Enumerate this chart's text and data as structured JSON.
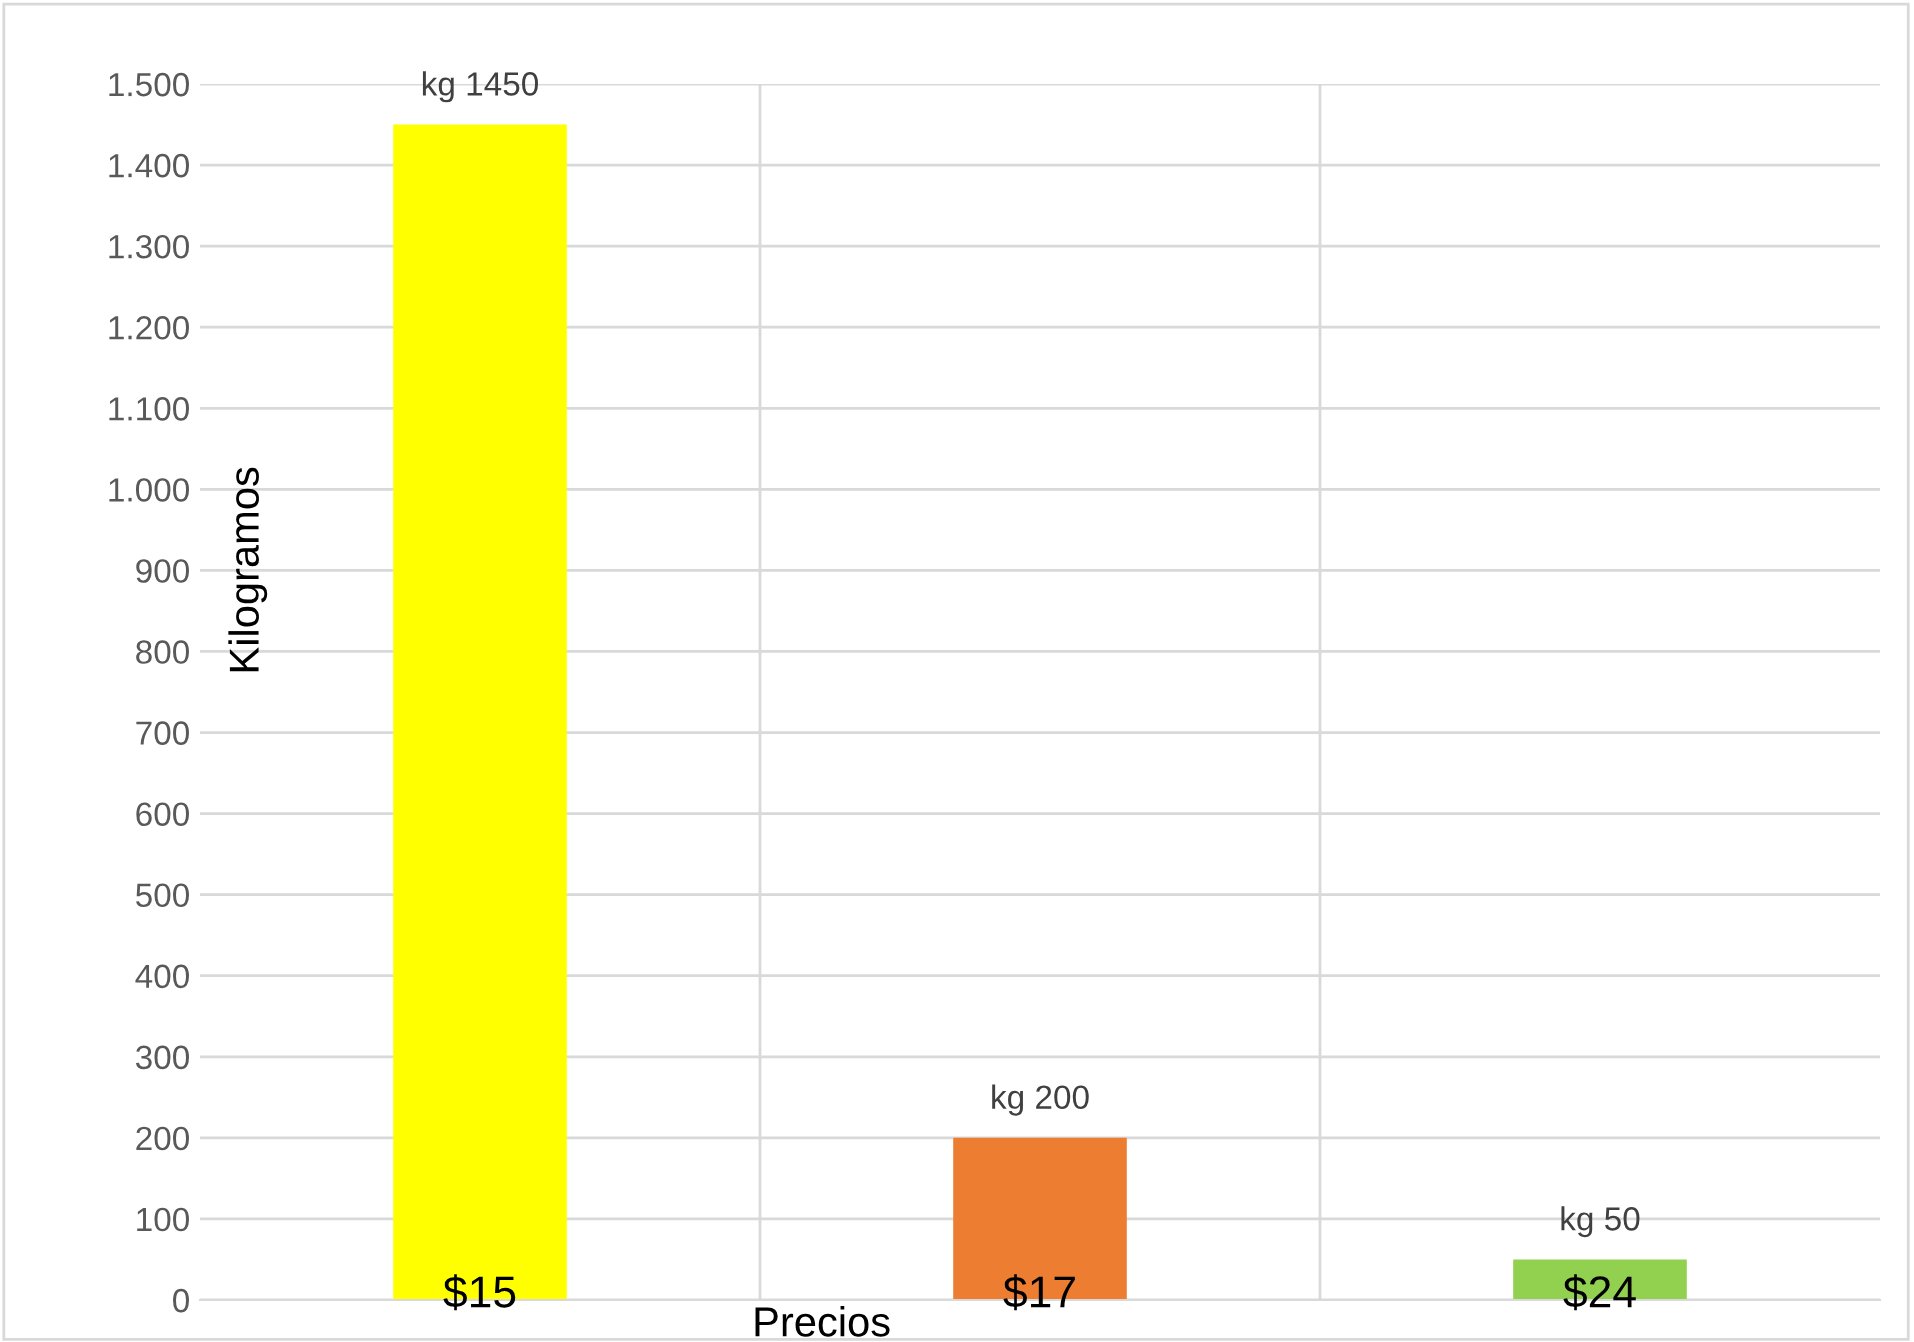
{
  "chart_data": {
    "type": "bar",
    "xlabel": "Precios",
    "ylabel": "Kilogramos",
    "categories": [
      "$15",
      "$17",
      "$24"
    ],
    "values": [
      1450,
      200,
      50
    ],
    "colors": [
      "#ffff00",
      "#ed7d31",
      "#92d050"
    ],
    "value_labels": [
      "kg 1450",
      "kg 200",
      "kg 50"
    ],
    "ylim": [
      0,
      1500
    ],
    "yticks": [
      0,
      100,
      200,
      300,
      400,
      500,
      600,
      700,
      800,
      900,
      {
        "value": 1000,
        "label": "1.000"
      },
      {
        "value": 1100,
        "label": "1.100"
      },
      {
        "value": 1200,
        "label": "1.200"
      },
      {
        "value": 1300,
        "label": "1.300"
      },
      {
        "value": 1400,
        "label": "1.400"
      },
      {
        "value": 1500,
        "label": "1.500"
      }
    ],
    "grid": true
  }
}
